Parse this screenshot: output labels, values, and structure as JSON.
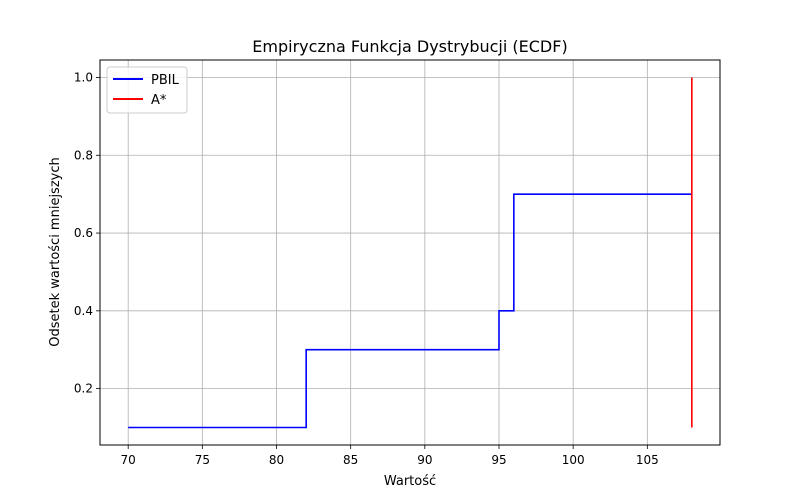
{
  "chart_data": {
    "type": "line",
    "title": "Empiryczna Funkcja Dystrybucji (ECDF)",
    "xlabel": "Wartość",
    "ylabel": "Odsetek wartości mniejszych",
    "xlim": [
      68.1,
      109.9
    ],
    "ylim": [
      0.055,
      1.045
    ],
    "xticks": [
      70,
      75,
      80,
      85,
      90,
      95,
      100,
      105
    ],
    "yticks": [
      0.2,
      0.4,
      0.6,
      0.8,
      1.0
    ],
    "ytick_labels": [
      "0.2",
      "0.4",
      "0.6",
      "0.8",
      "1.0"
    ],
    "grid": true,
    "legend_position": "top-left",
    "series": [
      {
        "name": "PBIL",
        "color": "#0000ff",
        "x": [
          70,
          82,
          82,
          95,
          95,
          96,
          96,
          108
        ],
        "y": [
          0.1,
          0.1,
          0.3,
          0.3,
          0.4,
          0.4,
          0.7,
          0.7
        ]
      },
      {
        "name": "A*",
        "color": "#ff0000",
        "x": [
          108,
          108
        ],
        "y": [
          0.1,
          1.0
        ]
      }
    ]
  }
}
